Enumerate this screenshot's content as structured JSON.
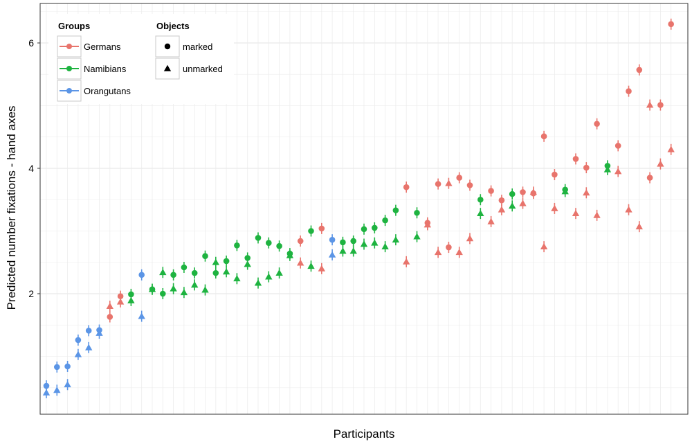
{
  "chart_data": {
    "type": "scatter",
    "title": "",
    "xlabel": "Participants",
    "ylabel": "Predicted number fixations - hand axes",
    "ylim": [
      0.2,
      6.6
    ],
    "yticks": [
      2,
      4,
      6
    ],
    "ytick_labels": [
      "2",
      "4",
      "6"
    ],
    "grid": true,
    "x_tick_labels_shown": false,
    "legend": {
      "placement": "top-left",
      "groups_title": "Groups",
      "objects_title": "Objects",
      "groups": [
        {
          "name": "Germans",
          "color": "#e8746c"
        },
        {
          "name": "Namibians",
          "color": "#1eb340"
        },
        {
          "name": "Orangutans",
          "color": "#5b95e6"
        }
      ],
      "objects": [
        {
          "name": "marked",
          "shape": "circle"
        },
        {
          "name": "unmarked",
          "shape": "triangle"
        }
      ]
    },
    "participants": [
      {
        "x": 1,
        "group": "Orangutans",
        "marked": 0.53,
        "unmarked": 0.42
      },
      {
        "x": 2,
        "group": "Orangutans",
        "marked": 0.83,
        "unmarked": 0.46
      },
      {
        "x": 3,
        "group": "Orangutans",
        "marked": 0.84,
        "unmarked": 0.55
      },
      {
        "x": 4,
        "group": "Orangutans",
        "marked": 1.26,
        "unmarked": 1.03
      },
      {
        "x": 5,
        "group": "Orangutans",
        "marked": 1.41,
        "unmarked": 1.14
      },
      {
        "x": 6,
        "group": "Orangutans",
        "marked": 1.42,
        "unmarked": 1.37
      },
      {
        "x": 7,
        "group": "Germans",
        "marked": 1.63,
        "unmarked": 1.8
      },
      {
        "x": 8,
        "group": "Germans",
        "marked": 1.96,
        "unmarked": 1.87
      },
      {
        "x": 9,
        "group": "Namibians",
        "marked": 1.99,
        "unmarked": 1.89
      },
      {
        "x": 10,
        "group": "Orangutans",
        "marked": 2.3,
        "unmarked": 1.64
      },
      {
        "x": 11,
        "group": "Namibians",
        "marked": 2.07,
        "unmarked": 2.07
      },
      {
        "x": 12,
        "group": "Namibians",
        "marked": 2.0,
        "unmarked": 2.34
      },
      {
        "x": 13,
        "group": "Namibians",
        "marked": 2.3,
        "unmarked": 2.08
      },
      {
        "x": 14,
        "group": "Namibians",
        "marked": 2.42,
        "unmarked": 2.02
      },
      {
        "x": 15,
        "group": "Namibians",
        "marked": 2.33,
        "unmarked": 2.14
      },
      {
        "x": 16,
        "group": "Namibians",
        "marked": 2.6,
        "unmarked": 2.06
      },
      {
        "x": 17,
        "group": "Namibians",
        "marked": 2.33,
        "unmarked": 2.5
      },
      {
        "x": 18,
        "group": "Namibians",
        "marked": 2.52,
        "unmarked": 2.35
      },
      {
        "x": 19,
        "group": "Namibians",
        "marked": 2.77,
        "unmarked": 2.24
      },
      {
        "x": 20,
        "group": "Namibians",
        "marked": 2.57,
        "unmarked": 2.47
      },
      {
        "x": 21,
        "group": "Namibians",
        "marked": 2.89,
        "unmarked": 2.17
      },
      {
        "x": 22,
        "group": "Namibians",
        "marked": 2.81,
        "unmarked": 2.27
      },
      {
        "x": 23,
        "group": "Namibians",
        "marked": 2.76,
        "unmarked": 2.33
      },
      {
        "x": 24,
        "group": "Namibians",
        "marked": 2.64,
        "unmarked": 2.61
      },
      {
        "x": 25,
        "group": "Germans",
        "marked": 2.84,
        "unmarked": 2.49
      },
      {
        "x": 26,
        "group": "Namibians",
        "marked": 3.0,
        "unmarked": 2.44
      },
      {
        "x": 27,
        "group": "Germans",
        "marked": 3.04,
        "unmarked": 2.4
      },
      {
        "x": 28,
        "group": "Orangutans",
        "marked": 2.86,
        "unmarked": 2.62
      },
      {
        "x": 29,
        "group": "Namibians",
        "marked": 2.82,
        "unmarked": 2.68
      },
      {
        "x": 30,
        "group": "Namibians",
        "marked": 2.84,
        "unmarked": 2.68
      },
      {
        "x": 31,
        "group": "Namibians",
        "marked": 3.03,
        "unmarked": 2.79
      },
      {
        "x": 32,
        "group": "Namibians",
        "marked": 3.05,
        "unmarked": 2.81
      },
      {
        "x": 33,
        "group": "Namibians",
        "marked": 3.17,
        "unmarked": 2.75
      },
      {
        "x": 34,
        "group": "Namibians",
        "marked": 3.33,
        "unmarked": 2.86
      },
      {
        "x": 35,
        "group": "Germans",
        "marked": 3.7,
        "unmarked": 2.51
      },
      {
        "x": 36,
        "group": "Namibians",
        "marked": 3.29,
        "unmarked": 2.91
      },
      {
        "x": 37,
        "group": "Germans",
        "marked": 3.13,
        "unmarked": 3.1
      },
      {
        "x": 38,
        "group": "Germans",
        "marked": 3.75,
        "unmarked": 2.66
      },
      {
        "x": 39,
        "group": "Germans",
        "marked": 2.74,
        "unmarked": 3.76
      },
      {
        "x": 40,
        "group": "Germans",
        "marked": 3.85,
        "unmarked": 2.66
      },
      {
        "x": 41,
        "group": "Germans",
        "marked": 3.73,
        "unmarked": 2.88
      },
      {
        "x": 42,
        "group": "Namibians",
        "marked": 3.5,
        "unmarked": 3.28
      },
      {
        "x": 43,
        "group": "Germans",
        "marked": 3.64,
        "unmarked": 3.15
      },
      {
        "x": 44,
        "group": "Germans",
        "marked": 3.49,
        "unmarked": 3.34
      },
      {
        "x": 45,
        "group": "Namibians",
        "marked": 3.59,
        "unmarked": 3.4
      },
      {
        "x": 46,
        "group": "Germans",
        "marked": 3.62,
        "unmarked": 3.44
      },
      {
        "x": 47,
        "group": "Germans",
        "marked": 3.6,
        "unmarked": 3.62
      },
      {
        "x": 48,
        "group": "Germans",
        "marked": 4.51,
        "unmarked": 2.75
      },
      {
        "x": 49,
        "group": "Germans",
        "marked": 3.9,
        "unmarked": 3.36
      },
      {
        "x": 50,
        "group": "Namibians",
        "marked": 3.66,
        "unmarked": 3.63
      },
      {
        "x": 51,
        "group": "Germans",
        "marked": 4.15,
        "unmarked": 3.28
      },
      {
        "x": 52,
        "group": "Germans",
        "marked": 4.01,
        "unmarked": 3.61
      },
      {
        "x": 53,
        "group": "Germans",
        "marked": 4.71,
        "unmarked": 3.25
      },
      {
        "x": 54,
        "group": "Namibians",
        "marked": 4.04,
        "unmarked": 3.98
      },
      {
        "x": 55,
        "group": "Germans",
        "marked": 4.36,
        "unmarked": 3.95
      },
      {
        "x": 56,
        "group": "Germans",
        "marked": 5.23,
        "unmarked": 3.34
      },
      {
        "x": 57,
        "group": "Germans",
        "marked": 5.57,
        "unmarked": 3.07
      },
      {
        "x": 58,
        "group": "Germans",
        "marked": 3.85,
        "unmarked": 5.01
      },
      {
        "x": 59,
        "group": "Germans",
        "marked": 5.01,
        "unmarked": 4.07
      },
      {
        "x": 60,
        "group": "Germans",
        "marked": 6.3,
        "unmarked": 4.3
      }
    ]
  }
}
